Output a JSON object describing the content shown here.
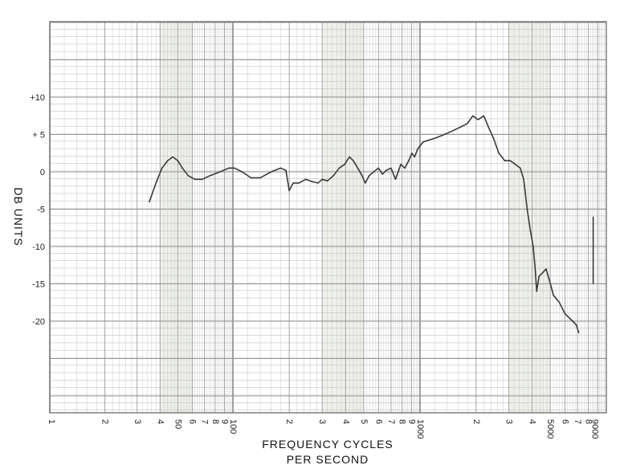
{
  "chart_data": {
    "type": "line",
    "x_scale": "log",
    "xlim": [
      20,
      10000
    ],
    "ylim": [
      -27,
      20
    ],
    "grid": true,
    "ylabel": "DB UNITS",
    "xlabel_line1": "FREQUENCY CYCLES",
    "xlabel_line2": "PER SECOND",
    "y_ticks": [
      {
        "value": 10,
        "label": "+10"
      },
      {
        "value": 5,
        "label": "+ 5"
      },
      {
        "value": 0,
        "label": "0"
      },
      {
        "value": -5,
        "label": "-5"
      },
      {
        "value": -10,
        "label": "-10"
      },
      {
        "value": -15,
        "label": "-15"
      },
      {
        "value": -20,
        "label": "-20"
      }
    ],
    "x_ticks": [
      {
        "value": 10,
        "label": "1"
      },
      {
        "value": 20,
        "label": "2"
      },
      {
        "value": 30,
        "label": "3"
      },
      {
        "value": 40,
        "label": "4"
      },
      {
        "value": 50,
        "label": "50"
      },
      {
        "value": 60,
        "label": "6"
      },
      {
        "value": 70,
        "label": "7"
      },
      {
        "value": 80,
        "label": "8"
      },
      {
        "value": 90,
        "label": "9"
      },
      {
        "value": 100,
        "label": "100"
      },
      {
        "value": 200,
        "label": "2"
      },
      {
        "value": 300,
        "label": "3"
      },
      {
        "value": 400,
        "label": "4"
      },
      {
        "value": 500,
        "label": "5"
      },
      {
        "value": 600,
        "label": "6"
      },
      {
        "value": 700,
        "label": "7"
      },
      {
        "value": 800,
        "label": "8"
      },
      {
        "value": 900,
        "label": "9"
      },
      {
        "value": 1000,
        "label": "1000"
      },
      {
        "value": 2000,
        "label": "2"
      },
      {
        "value": 3000,
        "label": "3"
      },
      {
        "value": 4000,
        "label": "4"
      },
      {
        "value": 5000,
        "label": "5000"
      },
      {
        "value": 6000,
        "label": "6"
      },
      {
        "value": 7000,
        "label": "7"
      },
      {
        "value": 8000,
        "label": "8"
      },
      {
        "value": 9000,
        "label": "9000"
      }
    ],
    "series": [
      {
        "color": "#3a3a3a",
        "points": [
          [
            35,
            -4
          ],
          [
            38,
            -1.5
          ],
          [
            41,
            0.5
          ],
          [
            44,
            1.5
          ],
          [
            47,
            2
          ],
          [
            50,
            1.5
          ],
          [
            53,
            0.5
          ],
          [
            57,
            -0.5
          ],
          [
            62,
            -1
          ],
          [
            68,
            -1
          ],
          [
            75,
            -0.5
          ],
          [
            85,
            0
          ],
          [
            95,
            0.5
          ],
          [
            102,
            0.5
          ],
          [
            112,
            0
          ],
          [
            125,
            -0.8
          ],
          [
            140,
            -0.8
          ],
          [
            160,
            0
          ],
          [
            180,
            0.5
          ],
          [
            192,
            0.2
          ],
          [
            200,
            -2.5
          ],
          [
            210,
            -1.5
          ],
          [
            225,
            -1.5
          ],
          [
            245,
            -1
          ],
          [
            265,
            -1.3
          ],
          [
            285,
            -1.5
          ],
          [
            300,
            -1
          ],
          [
            320,
            -1.2
          ],
          [
            345,
            -0.5
          ],
          [
            370,
            0.5
          ],
          [
            395,
            1
          ],
          [
            420,
            2
          ],
          [
            440,
            1.5
          ],
          [
            465,
            0.5
          ],
          [
            490,
            -0.5
          ],
          [
            510,
            -1.5
          ],
          [
            535,
            -0.5
          ],
          [
            565,
            0
          ],
          [
            600,
            0.5
          ],
          [
            630,
            -0.3
          ],
          [
            660,
            0.2
          ],
          [
            700,
            0.5
          ],
          [
            740,
            -1
          ],
          [
            790,
            1
          ],
          [
            830,
            0.5
          ],
          [
            870,
            1.5
          ],
          [
            905,
            2.5
          ],
          [
            935,
            2
          ],
          [
            970,
            3
          ],
          [
            1000,
            3.5
          ],
          [
            1040,
            4
          ],
          [
            1100,
            4.2
          ],
          [
            1200,
            4.5
          ],
          [
            1350,
            5
          ],
          [
            1500,
            5.5
          ],
          [
            1650,
            6
          ],
          [
            1800,
            6.5
          ],
          [
            1920,
            7.5
          ],
          [
            2050,
            7
          ],
          [
            2200,
            7.5
          ],
          [
            2330,
            6
          ],
          [
            2480,
            4.5
          ],
          [
            2650,
            2.5
          ],
          [
            2850,
            1.5
          ],
          [
            3050,
            1.5
          ],
          [
            3250,
            1
          ],
          [
            3450,
            0.5
          ],
          [
            3600,
            -1
          ],
          [
            3760,
            -5
          ],
          [
            3920,
            -8
          ],
          [
            4050,
            -10
          ],
          [
            4150,
            -13
          ],
          [
            4230,
            -16
          ],
          [
            4350,
            -14
          ],
          [
            4550,
            -13.5
          ],
          [
            4750,
            -13
          ],
          [
            4950,
            -14.5
          ],
          [
            5200,
            -16.5
          ],
          [
            5600,
            -17.5
          ],
          [
            6000,
            -19
          ],
          [
            6300,
            -19.5
          ],
          [
            6600,
            -20
          ],
          [
            6900,
            -20.5
          ],
          [
            7100,
            -21.5
          ]
        ]
      }
    ],
    "extra_marks": [
      {
        "x": 8500,
        "y_from": -6,
        "y_to": -15
      }
    ]
  }
}
